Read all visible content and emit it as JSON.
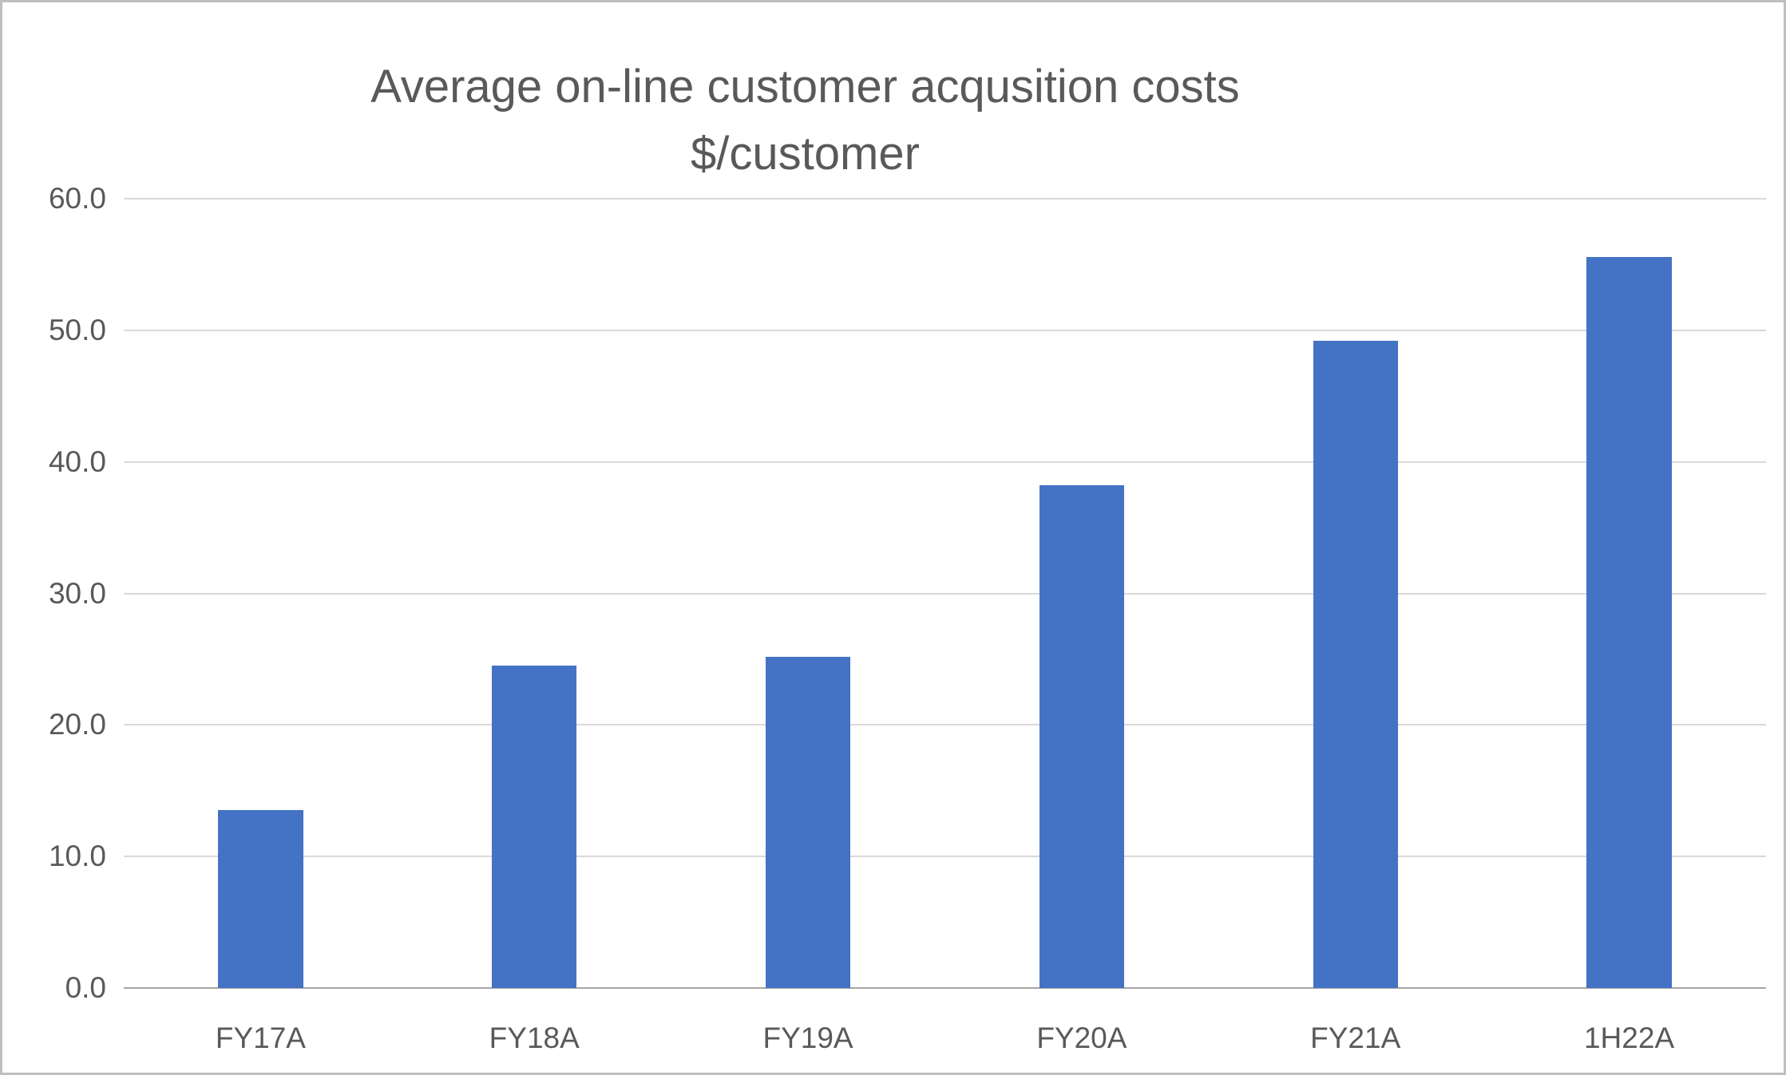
{
  "chart_data": {
    "type": "bar",
    "title": "Average on-line customer acqusition costs",
    "subtitle": "$/customer",
    "categories": [
      "FY17A",
      "FY18A",
      "FY19A",
      "FY20A",
      "FY21A",
      "1H22A"
    ],
    "values": [
      13.5,
      24.5,
      25.2,
      38.2,
      49.2,
      55.6
    ],
    "xlabel": "",
    "ylabel": "",
    "ylim": [
      0,
      60
    ],
    "ytick_step": 10,
    "ytick_labels": [
      "0.0",
      "10.0",
      "20.0",
      "30.0",
      "40.0",
      "50.0",
      "60.0"
    ],
    "grid": true,
    "legend": "none",
    "bar_color": "#4472C4",
    "gridline_color": "#D9D9D9",
    "axis_line_color": "#A6A6A6",
    "text_color": "#595959"
  }
}
